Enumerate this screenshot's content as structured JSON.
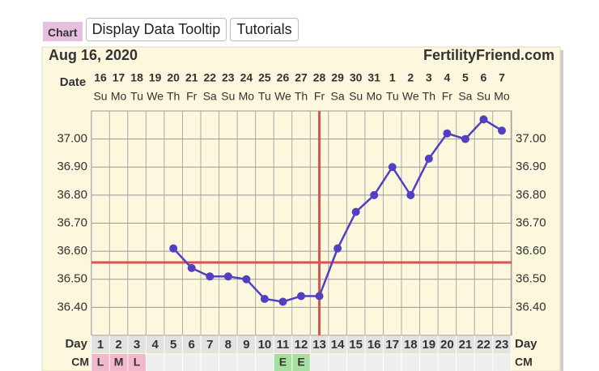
{
  "buttons": {
    "badge": "Chart",
    "tooltip": "Display Data Tooltip",
    "tutorials": "Tutorials"
  },
  "chart_data": {
    "type": "line",
    "title": "Aug 16, 2020",
    "source": "FertilityFriend.com",
    "row_labels": {
      "date": "Date",
      "day": "Day",
      "cm": "CM"
    },
    "days": [
      1,
      2,
      3,
      4,
      5,
      6,
      7,
      8,
      9,
      10,
      11,
      12,
      13,
      14,
      15,
      16,
      17,
      18,
      19,
      20,
      21,
      22,
      23
    ],
    "dates": [
      16,
      17,
      18,
      19,
      20,
      21,
      22,
      23,
      24,
      25,
      26,
      27,
      28,
      29,
      30,
      31,
      1,
      2,
      3,
      4,
      5,
      6,
      7
    ],
    "weekdays": [
      "Su",
      "Mo",
      "Tu",
      "We",
      "Th",
      "Fr",
      "Sa",
      "Su",
      "Mo",
      "Tu",
      "We",
      "Th",
      "Fr",
      "Sa",
      "Su",
      "Mo",
      "Tu",
      "We",
      "Th",
      "Fr",
      "Sa",
      "Su",
      "Mo"
    ],
    "cm": [
      "L",
      "M",
      "L",
      null,
      null,
      null,
      null,
      null,
      null,
      null,
      "E",
      "E",
      null,
      null,
      null,
      null,
      null,
      null,
      null,
      null,
      null,
      null,
      null
    ],
    "cm_colors": [
      "#f2b8cc",
      "#f2b8cc",
      "#f2b8cc",
      null,
      null,
      null,
      null,
      null,
      null,
      null,
      "#a6e0a0",
      "#a6e0a0",
      null,
      null,
      null,
      null,
      null,
      null,
      null,
      null,
      null,
      null,
      null
    ],
    "series": [
      {
        "name": "Temperature",
        "color": "#5140c4",
        "values": [
          null,
          null,
          null,
          null,
          36.61,
          36.54,
          36.51,
          36.51,
          36.5,
          36.43,
          36.42,
          36.44,
          36.44,
          36.61,
          36.74,
          36.8,
          36.9,
          36.8,
          36.93,
          37.02,
          37.0,
          37.07,
          37.03
        ]
      }
    ],
    "coverline": 36.56,
    "coverline_color": "#d9534f",
    "ovulation_day": 13,
    "ovulation_color": "#d9534f",
    "ylim": [
      36.3,
      37.1
    ],
    "yticks": [
      {
        "value": 36.4,
        "label": "36.40"
      },
      {
        "value": 36.5,
        "label": "36.50"
      },
      {
        "value": 36.6,
        "label": "36.60"
      },
      {
        "value": 36.7,
        "label": "36.70"
      },
      {
        "value": 36.8,
        "label": "36.80"
      },
      {
        "value": 36.9,
        "label": "36.90"
      },
      {
        "value": 37.0,
        "label": "37.00"
      }
    ],
    "grid": true
  }
}
